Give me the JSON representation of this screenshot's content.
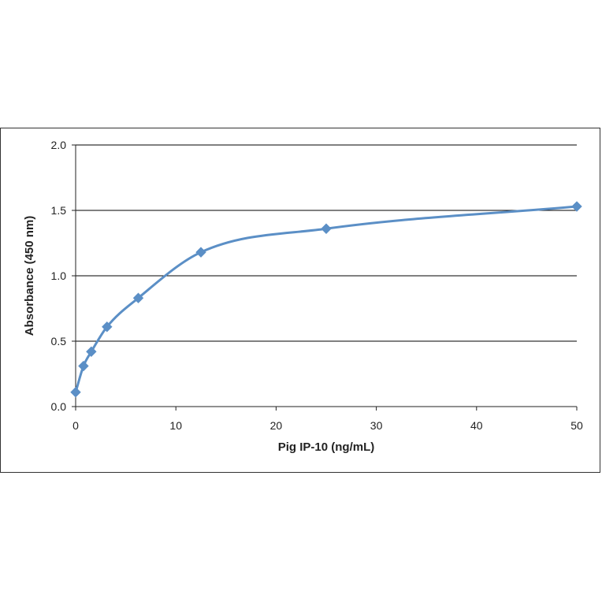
{
  "chart_data": {
    "type": "line",
    "title": "",
    "xlabel": "Pig IP-10 (ng/mL)",
    "ylabel": "Absorbance  (450  nm)",
    "xlim": [
      0,
      50
    ],
    "ylim": [
      0,
      2.0
    ],
    "xticks": [
      "0",
      "10",
      "20",
      "30",
      "40",
      "50"
    ],
    "yticks": [
      "0.0",
      "0.5",
      "1.0",
      "1.5",
      "2.0"
    ],
    "grid": "horizontal",
    "legend": "none",
    "series": [
      {
        "color": "#5b8fc6",
        "marker": "diamond",
        "smooth": true,
        "x": [
          0,
          0.78,
          1.56,
          3.13,
          6.25,
          12.5,
          25,
          50
        ],
        "y": [
          0.11,
          0.31,
          0.42,
          0.61,
          0.83,
          1.18,
          1.36,
          1.53
        ]
      }
    ]
  }
}
